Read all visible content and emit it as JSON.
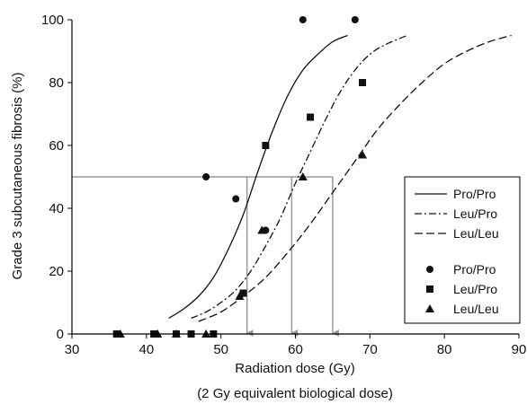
{
  "chart_data": {
    "type": "scatter",
    "xlabel": "Radiation dose (Gy)",
    "xlabel_sub": "(2 Gy equivalent biological dose)",
    "ylabel": "Grade 3 subcutaneous fibrosis (%)",
    "xlim": [
      30,
      90
    ],
    "ylim": [
      0,
      100
    ],
    "xticks": [
      30,
      40,
      50,
      60,
      70,
      80,
      90
    ],
    "yticks": [
      0,
      20,
      40,
      60,
      80,
      100
    ],
    "grid": false,
    "legend_position": "right",
    "colors": {
      "axis": "#000000",
      "reference": "#999999",
      "series": "#111111"
    },
    "curves": [
      {
        "name": "Pro/Pro",
        "style": "solid",
        "x": [
          43,
          45,
          47,
          49,
          51,
          53,
          55,
          57,
          59,
          61,
          63,
          65,
          67
        ],
        "y": [
          5,
          8,
          12,
          18,
          27,
          38,
          52,
          65,
          76,
          84,
          89,
          93,
          95
        ]
      },
      {
        "name": "Leu/Pro",
        "style": "dashdot",
        "x": [
          46,
          48,
          50,
          52,
          54,
          56,
          58,
          60,
          62,
          64,
          66,
          68,
          70,
          72,
          75
        ],
        "y": [
          5,
          7,
          10,
          14,
          20,
          28,
          37,
          48,
          58,
          68,
          77,
          84,
          89,
          92,
          95
        ]
      },
      {
        "name": "Leu/Leu",
        "style": "dashed",
        "x": [
          47,
          50,
          53,
          56,
          59,
          62,
          65,
          68,
          71,
          74,
          77,
          80,
          83,
          86,
          89
        ],
        "y": [
          4,
          7,
          12,
          18,
          26,
          35,
          45,
          55,
          65,
          73,
          80,
          86,
          90,
          93,
          95
        ]
      }
    ],
    "series": [
      {
        "name": "Pro/Pro",
        "marker": "circle",
        "points": [
          [
            36,
            0
          ],
          [
            41,
            0
          ],
          [
            48,
            50
          ],
          [
            52,
            43
          ],
          [
            56,
            33
          ],
          [
            61,
            100
          ],
          [
            68,
            100
          ]
        ]
      },
      {
        "name": "Leu/Pro",
        "marker": "square",
        "points": [
          [
            36,
            0
          ],
          [
            41,
            0
          ],
          [
            44,
            0
          ],
          [
            46,
            0
          ],
          [
            49,
            0
          ],
          [
            53,
            13
          ],
          [
            56,
            60
          ],
          [
            62,
            69
          ],
          [
            69,
            80
          ]
        ]
      },
      {
        "name": "Leu/Leu",
        "marker": "triangle",
        "points": [
          [
            36.5,
            0
          ],
          [
            41.5,
            0
          ],
          [
            44,
            0
          ],
          [
            48,
            0
          ],
          [
            52.5,
            12
          ],
          [
            55.5,
            33
          ],
          [
            61,
            50
          ],
          [
            69,
            57
          ]
        ]
      }
    ],
    "reference_lines": {
      "y": 50,
      "x_start": 30,
      "x_end": 65,
      "drops": [
        53.5,
        59.5,
        65
      ]
    }
  }
}
